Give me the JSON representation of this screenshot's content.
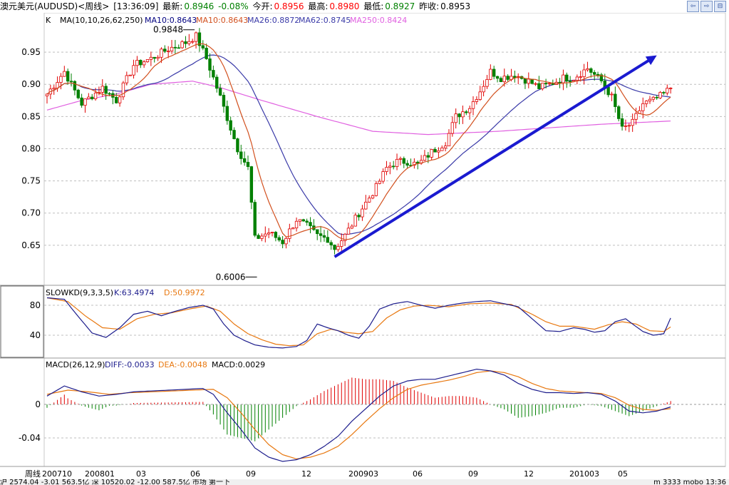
{
  "title": {
    "symbol": "澳元美元(AUDUSD)<周线>",
    "time": "[13:36:09]",
    "latest_label": "最新:",
    "latest": "0.8946",
    "change": "-0.08%",
    "open_label": "今开:",
    "open": "0.8956",
    "high_label": "最高:",
    "high": "0.8980",
    "low_label": "最低:",
    "low": "0.8927",
    "prev_label": "昨收:",
    "prev": "0.8953"
  },
  "window_buttons": [
    "⇦",
    "⇨",
    "⊟"
  ],
  "main_legend": {
    "k": "K",
    "ma_params": "MA(10,10,26,62,250)",
    "ma10a": "MA10:0.8643",
    "ma10b": "MA10:0.8643",
    "ma26": "MA26:0.8872",
    "ma62": "MA62:0.8745",
    "ma250": "MA250:0.8424"
  },
  "kd_legend": {
    "name": "SLOWKD(9,3,3,5)",
    "k": "K:63.4974",
    "d": "D:50.9972"
  },
  "macd_legend": {
    "name": "MACD(26,12,9)",
    "diff": "DIFF:-0.0033",
    "dea": "DEA:-0.0048",
    "macd": "MACD:0.0029"
  },
  "annotations": {
    "high": "0.9848",
    "low": "0.6006"
  },
  "colors": {
    "up": "#e00000",
    "down": "#008000",
    "ma10": "#d2501e",
    "ma26": "#3a3aa8",
    "ma250": "#e060e0",
    "trend": "#1a1ad0",
    "k_line": "#1c1c8c",
    "d_line": "#e87810",
    "grid": "#bfbfbf"
  },
  "chart_data": [
    {
      "type": "candlestick",
      "title": "澳元美元(AUDUSD)<周线>",
      "y_ticks": [
        "0.95",
        "0.90",
        "0.85",
        "0.80",
        "0.75",
        "0.70",
        "0.65"
      ],
      "ylim": [
        0.59,
        1.0
      ],
      "x_ticks": [
        "周线",
        "200710",
        "200801",
        "03",
        "06",
        "09",
        "12",
        "200903",
        "06",
        "09",
        "12",
        "201003",
        "05"
      ],
      "high": 0.9848,
      "low": 0.6006,
      "anchors": [
        [
          0,
          0.885
        ],
        [
          5,
          0.92
        ],
        [
          10,
          0.87
        ],
        [
          16,
          0.895
        ],
        [
          20,
          0.875
        ],
        [
          25,
          0.93
        ],
        [
          30,
          0.94
        ],
        [
          35,
          0.955
        ],
        [
          40,
          0.965
        ],
        [
          43,
          0.975
        ],
        [
          46,
          0.94
        ],
        [
          50,
          0.88
        ],
        [
          55,
          0.8
        ],
        [
          58,
          0.77
        ],
        [
          60,
          0.66
        ],
        [
          64,
          0.67
        ],
        [
          68,
          0.655
        ],
        [
          72,
          0.69
        ],
        [
          75,
          0.68
        ],
        [
          78,
          0.665
        ],
        [
          81,
          0.66
        ],
        [
          83,
          0.645
        ],
        [
          86,
          0.665
        ],
        [
          90,
          0.7
        ],
        [
          95,
          0.74
        ],
        [
          98,
          0.77
        ],
        [
          101,
          0.78
        ],
        [
          104,
          0.78
        ],
        [
          107,
          0.775
        ],
        [
          111,
          0.795
        ],
        [
          115,
          0.81
        ],
        [
          118,
          0.85
        ],
        [
          122,
          0.865
        ],
        [
          125,
          0.89
        ],
        [
          128,
          0.92
        ],
        [
          131,
          0.91
        ],
        [
          135,
          0.915
        ],
        [
          139,
          0.905
        ],
        [
          142,
          0.895
        ],
        [
          145,
          0.9
        ],
        [
          149,
          0.91
        ],
        [
          152,
          0.91
        ],
        [
          156,
          0.925
        ],
        [
          160,
          0.905
        ],
        [
          163,
          0.88
        ],
        [
          166,
          0.83
        ],
        [
          169,
          0.84
        ],
        [
          172,
          0.87
        ],
        [
          175,
          0.875
        ],
        [
          178,
          0.885
        ],
        [
          180,
          0.895
        ]
      ],
      "series_ma": [
        {
          "name": "MA10",
          "window": 10
        },
        {
          "name": "MA26",
          "window": 26
        },
        {
          "name": "MA250",
          "anchors": [
            [
              0,
              0.86
            ],
            [
              10,
              0.875
            ],
            [
              20,
              0.885
            ],
            [
              30,
              0.9
            ],
            [
              42,
              0.905
            ],
            [
              50,
              0.895
            ],
            [
              62,
              0.875
            ],
            [
              78,
              0.85
            ],
            [
              94,
              0.827
            ],
            [
              110,
              0.822
            ],
            [
              130,
              0.827
            ],
            [
              160,
              0.838
            ],
            [
              180,
              0.843
            ]
          ]
        }
      ],
      "trend_line": {
        "from": [
          83,
          0.632
        ],
        "to": [
          176,
          0.945
        ]
      }
    },
    {
      "type": "line",
      "title": "SLOWKD(9,3,3,5)",
      "y_ticks": [
        "80",
        "40"
      ],
      "ylim": [
        20,
        100
      ],
      "series": [
        {
          "name": "K",
          "anchors": [
            [
              0,
              90
            ],
            [
              5,
              88
            ],
            [
              9,
              65
            ],
            [
              13,
              43
            ],
            [
              17,
              37
            ],
            [
              21,
              50
            ],
            [
              25,
              68
            ],
            [
              29,
              72
            ],
            [
              33,
              66
            ],
            [
              37,
              72
            ],
            [
              41,
              77
            ],
            [
              45,
              80
            ],
            [
              48,
              75
            ],
            [
              51,
              55
            ],
            [
              54,
              40
            ],
            [
              57,
              33
            ],
            [
              60,
              27
            ],
            [
              64,
              24
            ],
            [
              68,
              23
            ],
            [
              72,
              25
            ],
            [
              75,
              33
            ],
            [
              78,
              55
            ],
            [
              81,
              50
            ],
            [
              84,
              46
            ],
            [
              87,
              40
            ],
            [
              90,
              36
            ],
            [
              93,
              52
            ],
            [
              96,
              75
            ],
            [
              100,
              82
            ],
            [
              104,
              85
            ],
            [
              108,
              80
            ],
            [
              112,
              76
            ],
            [
              116,
              80
            ],
            [
              120,
              83
            ],
            [
              124,
              85
            ],
            [
              128,
              86
            ],
            [
              132,
              82
            ],
            [
              136,
              78
            ],
            [
              140,
              62
            ],
            [
              144,
              46
            ],
            [
              148,
              45
            ],
            [
              152,
              50
            ],
            [
              155,
              48
            ],
            [
              158,
              44
            ],
            [
              161,
              46
            ],
            [
              164,
              58
            ],
            [
              167,
              62
            ],
            [
              169,
              55
            ],
            [
              172,
              45
            ],
            [
              175,
              40
            ],
            [
              178,
              42
            ],
            [
              180,
              63
            ]
          ]
        },
        {
          "name": "D",
          "anchors": [
            [
              0,
              90
            ],
            [
              6,
              85
            ],
            [
              11,
              66
            ],
            [
              16,
              50
            ],
            [
              21,
              48
            ],
            [
              26,
              62
            ],
            [
              31,
              68
            ],
            [
              36,
              70
            ],
            [
              41,
              75
            ],
            [
              46,
              79
            ],
            [
              50,
              72
            ],
            [
              54,
              55
            ],
            [
              58,
              42
            ],
            [
              62,
              34
            ],
            [
              66,
              28
            ],
            [
              70,
              26
            ],
            [
              74,
              27
            ],
            [
              78,
              42
            ],
            [
              82,
              48
            ],
            [
              86,
              44
            ],
            [
              90,
              42
            ],
            [
              94,
              45
            ],
            [
              98,
              63
            ],
            [
              102,
              74
            ],
            [
              106,
              79
            ],
            [
              110,
              80
            ],
            [
              116,
              78
            ],
            [
              122,
              82
            ],
            [
              128,
              83
            ],
            [
              134,
              81
            ],
            [
              140,
              68
            ],
            [
              144,
              58
            ],
            [
              148,
              52
            ],
            [
              152,
              52
            ],
            [
              158,
              48
            ],
            [
              162,
              54
            ],
            [
              166,
              58
            ],
            [
              170,
              55
            ],
            [
              174,
              46
            ],
            [
              178,
              45
            ],
            [
              180,
              51
            ]
          ]
        }
      ]
    },
    {
      "type": "line",
      "title": "MACD(26,12,9)",
      "y_ticks": [
        "0",
        "-0.04"
      ],
      "ylim": [
        -0.075,
        0.045
      ],
      "series": [
        {
          "name": "DIFF",
          "anchors": [
            [
              0,
              0.01
            ],
            [
              5,
              0.022
            ],
            [
              10,
              0.015
            ],
            [
              15,
              0.01
            ],
            [
              20,
              0.012
            ],
            [
              25,
              0.015
            ],
            [
              30,
              0.016
            ],
            [
              35,
              0.017
            ],
            [
              40,
              0.018
            ],
            [
              45,
              0.019
            ],
            [
              48,
              0.012
            ],
            [
              52,
              -0.01
            ],
            [
              56,
              -0.03
            ],
            [
              60,
              -0.052
            ],
            [
              64,
              -0.063
            ],
            [
              68,
              -0.068
            ],
            [
              72,
              -0.066
            ],
            [
              76,
              -0.06
            ],
            [
              80,
              -0.05
            ],
            [
              84,
              -0.038
            ],
            [
              88,
              -0.02
            ],
            [
              92,
              -0.005
            ],
            [
              96,
              0.01
            ],
            [
              100,
              0.022
            ],
            [
              104,
              0.028
            ],
            [
              108,
              0.03
            ],
            [
              112,
              0.03
            ],
            [
              116,
              0.034
            ],
            [
              120,
              0.038
            ],
            [
              124,
              0.042
            ],
            [
              128,
              0.04
            ],
            [
              132,
              0.035
            ],
            [
              136,
              0.025
            ],
            [
              140,
              0.018
            ],
            [
              144,
              0.014
            ],
            [
              148,
              0.014
            ],
            [
              152,
              0.013
            ],
            [
              156,
              0.014
            ],
            [
              160,
              0.012
            ],
            [
              164,
              0.004
            ],
            [
              168,
              -0.008
            ],
            [
              172,
              -0.01
            ],
            [
              176,
              -0.008
            ],
            [
              180,
              -0.003
            ]
          ]
        },
        {
          "name": "DEA",
          "anchors": [
            [
              0,
              0.012
            ],
            [
              6,
              0.017
            ],
            [
              12,
              0.015
            ],
            [
              18,
              0.012
            ],
            [
              24,
              0.014
            ],
            [
              30,
              0.015
            ],
            [
              36,
              0.016
            ],
            [
              42,
              0.017
            ],
            [
              48,
              0.018
            ],
            [
              52,
              0.008
            ],
            [
              56,
              -0.01
            ],
            [
              60,
              -0.03
            ],
            [
              64,
              -0.048
            ],
            [
              68,
              -0.06
            ],
            [
              72,
              -0.065
            ],
            [
              76,
              -0.063
            ],
            [
              80,
              -0.058
            ],
            [
              84,
              -0.05
            ],
            [
              88,
              -0.036
            ],
            [
              92,
              -0.02
            ],
            [
              96,
              -0.005
            ],
            [
              100,
              0.008
            ],
            [
              104,
              0.018
            ],
            [
              108,
              0.023
            ],
            [
              112,
              0.026
            ],
            [
              116,
              0.029
            ],
            [
              120,
              0.033
            ],
            [
              124,
              0.038
            ],
            [
              128,
              0.04
            ],
            [
              132,
              0.038
            ],
            [
              136,
              0.033
            ],
            [
              140,
              0.025
            ],
            [
              144,
              0.019
            ],
            [
              148,
              0.016
            ],
            [
              152,
              0.015
            ],
            [
              156,
              0.014
            ],
            [
              160,
              0.013
            ],
            [
              164,
              0.008
            ],
            [
              168,
              -0.001
            ],
            [
              172,
              -0.006
            ],
            [
              176,
              -0.007
            ],
            [
              180,
              -0.005
            ]
          ]
        }
      ]
    }
  ],
  "footer": {
    "text": "沪 2574.04 -3.01 563.5亿 深 10520.02 -12.00 587.5亿 市场 第一下",
    "right": "m 3333 mobo 13:36"
  }
}
